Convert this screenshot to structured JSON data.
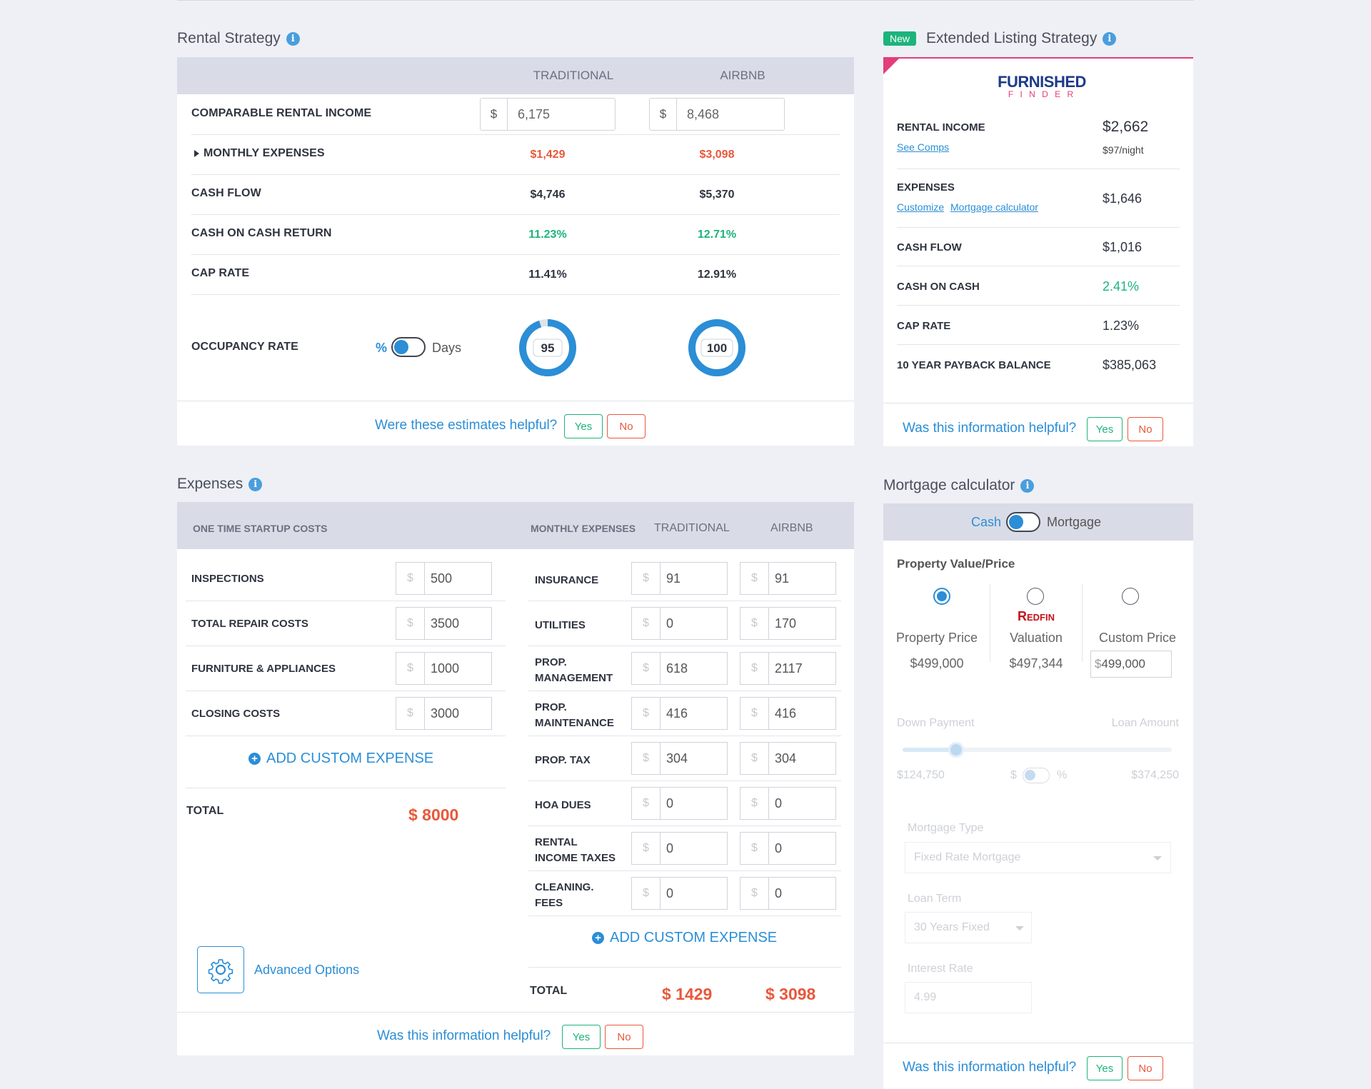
{
  "rental": {
    "title": "Rental Strategy",
    "col_traditional": "TRADITIONAL",
    "col_airbnb": "AIRBNB",
    "rows": [
      {
        "label": "COMPARABLE RENTAL INCOME",
        "traditional": "6,175",
        "airbnb": "8,468"
      },
      {
        "label": "MONTHLY EXPENSES",
        "traditional": "$1,429",
        "airbnb": "$3,098"
      },
      {
        "label": "CASH FLOW",
        "traditional": "$4,746",
        "airbnb": "$5,370"
      },
      {
        "label": "CASH ON CASH RETURN",
        "traditional": "11.23%",
        "airbnb": "12.71%"
      },
      {
        "label": "CAP RATE",
        "traditional": "11.41%",
        "airbnb": "12.91%"
      }
    ],
    "currency": "$",
    "occupancy": {
      "label": "OCCUPANCY RATE",
      "toggle_left": "%",
      "toggle_right": "Days",
      "traditional": "95",
      "airbnb": "100",
      "traditional_pct": 0.95,
      "airbnb_pct": 1.0
    },
    "helpful": "Were these estimates helpful?",
    "yes": "Yes",
    "no": "No"
  },
  "extended": {
    "badge": "New",
    "title": "Extended Listing Strategy",
    "logo_top": "FURNISHED",
    "logo_bottom": "F I N D E R",
    "rental_income_label": "RENTAL INCOME",
    "rental_income": "$2,662",
    "see_comps": "See Comps",
    "per_night": "$97/night",
    "expenses_label": "EXPENSES",
    "expenses": "$1,646",
    "customize": "Customize",
    "mortgage_calc": "Mortgage calculator",
    "cash_flow_label": "CASH FLOW",
    "cash_flow": "$1,016",
    "coc_label": "CASH ON CASH",
    "coc": "2.41%",
    "cap_label": "CAP RATE",
    "cap": "1.23%",
    "payback_label": "10 YEAR PAYBACK BALANCE",
    "payback": "$385,063",
    "helpful": "Was this information helpful?",
    "yes": "Yes",
    "no": "No"
  },
  "expenses": {
    "title": "Expenses",
    "startup_header": "ONE TIME STARTUP COSTS",
    "monthly_header": "MONTHLY EXPENSES",
    "col_traditional": "TRADITIONAL",
    "col_airbnb": "AIRBNB",
    "currency": "$",
    "startup": [
      {
        "label": "INSPECTIONS",
        "value": "500"
      },
      {
        "label": "TOTAL REPAIR COSTS",
        "value": "3500"
      },
      {
        "label": "FURNITURE & APPLIANCES",
        "value": "1000"
      },
      {
        "label": "CLOSING COSTS",
        "value": "3000"
      }
    ],
    "add_custom": "ADD CUSTOM EXPENSE",
    "startup_total_label": "TOTAL",
    "startup_total": "$ 8000",
    "monthly": [
      {
        "label1": "INSURANCE",
        "label2": "",
        "traditional": "91",
        "airbnb": "91"
      },
      {
        "label1": "UTILITIES",
        "label2": "",
        "traditional": "0",
        "airbnb": "170"
      },
      {
        "label1": "PROP.",
        "label2": "MANAGEMENT",
        "traditional": "618",
        "airbnb": "2117"
      },
      {
        "label1": "PROP.",
        "label2": "MAINTENANCE",
        "traditional": "416",
        "airbnb": "416"
      },
      {
        "label1": "PROP. TAX",
        "label2": "",
        "traditional": "304",
        "airbnb": "304"
      },
      {
        "label1": "HOA DUES",
        "label2": "",
        "traditional": "0",
        "airbnb": "0"
      },
      {
        "label1": "RENTAL",
        "label2": "INCOME TAXES",
        "traditional": "0",
        "airbnb": "0"
      },
      {
        "label1": "CLEANING.",
        "label2": "FEES",
        "traditional": "0",
        "airbnb": "0"
      }
    ],
    "monthly_total_label": "TOTAL",
    "monthly_total_traditional": "$ 1429",
    "monthly_total_airbnb": "$ 3098",
    "advanced": "Advanced Options",
    "helpful": "Was this information helpful?",
    "yes": "Yes",
    "no": "No"
  },
  "mortgage": {
    "title": "Mortgage calculator",
    "toggle_left": "Cash",
    "toggle_right": "Mortgage",
    "property_label": "Property Value/Price",
    "redfin": "Redfin",
    "options": [
      {
        "label": "Property Price",
        "value": "$499,000"
      },
      {
        "label": "Valuation",
        "value": "$497,344"
      },
      {
        "label": "Custom Price",
        "value": "499,000"
      }
    ],
    "custom_currency": "$",
    "down_payment": "Down Payment",
    "loan_amount": "Loan Amount",
    "down_value": "$124,750",
    "loan_value": "$374,250",
    "down_fraction": 0.25,
    "dollar": "$",
    "pct": "%",
    "mortgage_type_label": "Mortgage Type",
    "mortgage_type": "Fixed Rate Mortgage",
    "loan_term_label": "Loan Term",
    "loan_term": "30 Years Fixed",
    "interest_label": "Interest Rate",
    "interest": "4.99",
    "helpful": "Was this information helpful?",
    "yes": "Yes",
    "no": "No"
  }
}
